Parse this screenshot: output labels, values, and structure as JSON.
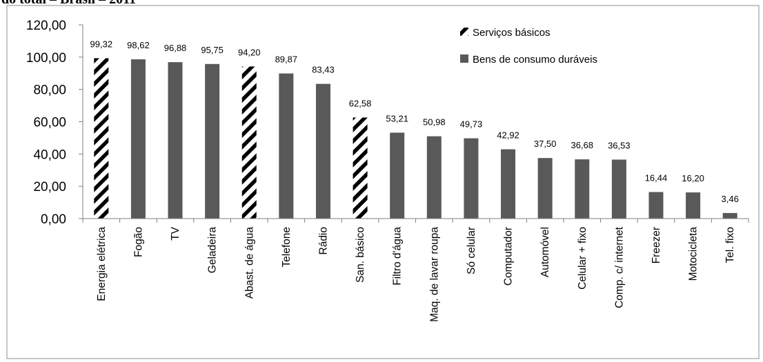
{
  "caption": "do total – Brasil – 2011",
  "colors": {
    "durable": "#595959",
    "hatch": "#000000",
    "frame": "#8c8c8c",
    "axis": "#7f7f7f"
  },
  "chart_data": {
    "type": "bar",
    "title": "",
    "xlabel": "",
    "ylabel": "",
    "ylim": [
      0,
      120
    ],
    "yticks": [
      "0,00",
      "20,00",
      "40,00",
      "60,00",
      "80,00",
      "100,00",
      "120,00"
    ],
    "grid": false,
    "legend_position": "top-right",
    "legend": [
      {
        "name": "Serviços básicos",
        "pattern": "hatched"
      },
      {
        "name": "Bens de consumo duráveis",
        "pattern": "solid"
      }
    ],
    "categories": [
      "Energia elétrica",
      "Fogão",
      "TV",
      "Geladeira",
      "Abast. de água",
      "Telefone",
      "Rádio",
      "San. básico",
      "Filtro d'água",
      "Maq. de lavar roupa",
      "Só celular",
      "Computador",
      "Automóvel",
      "Celular + fixo",
      "Comp. c/ internet",
      "Freezer",
      "Motocicleta",
      "Tel. fixo"
    ],
    "values": [
      99.32,
      98.62,
      96.88,
      95.75,
      94.2,
      89.87,
      83.43,
      62.58,
      53.21,
      50.98,
      49.73,
      42.92,
      37.5,
      36.68,
      36.53,
      16.44,
      16.2,
      3.46
    ],
    "value_labels": [
      "99,32",
      "98,62",
      "96,88",
      "95,75",
      "94,20",
      "89,87",
      "83,43",
      "62,58",
      "53,21",
      "50,98",
      "49,73",
      "42,92",
      "37,50",
      "36,68",
      "36,53",
      "16,44",
      "16,20",
      "3,46"
    ],
    "group": [
      "Serviços básicos",
      "Bens de consumo duráveis",
      "Bens de consumo duráveis",
      "Bens de consumo duráveis",
      "Serviços básicos",
      "Bens de consumo duráveis",
      "Bens de consumo duráveis",
      "Serviços básicos",
      "Bens de consumo duráveis",
      "Bens de consumo duráveis",
      "Bens de consumo duráveis",
      "Bens de consumo duráveis",
      "Bens de consumo duráveis",
      "Bens de consumo duráveis",
      "Bens de consumo duráveis",
      "Bens de consumo duráveis",
      "Bens de consumo duráveis",
      "Bens de consumo duráveis"
    ]
  }
}
